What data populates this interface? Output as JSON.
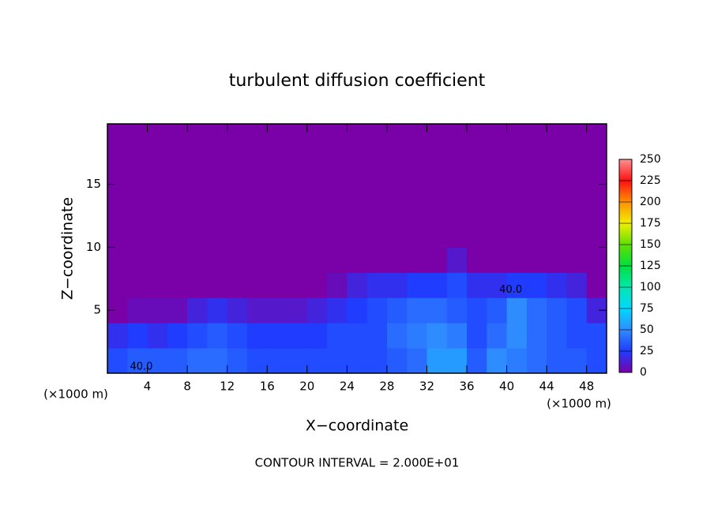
{
  "chart_data": {
    "type": "heatmap",
    "title": "turbulent diffusion coefficient",
    "xlabel": "X−coordinate",
    "ylabel": "Z−coordinate",
    "x_unit_left": "(×1000 m)",
    "x_unit_right": "(×1000 m)",
    "footnote": "CONTOUR INTERVAL = 2.000E+01",
    "xlim": [
      0,
      50
    ],
    "ylim": [
      0,
      19.8
    ],
    "xticks": [
      4,
      8,
      12,
      16,
      20,
      24,
      28,
      32,
      36,
      40,
      44,
      48
    ],
    "yticks": [
      5,
      10,
      15
    ],
    "x": [
      1,
      3,
      5,
      7,
      9,
      11,
      13,
      15,
      17,
      19,
      21,
      23,
      25,
      27,
      29,
      31,
      33,
      35,
      37,
      39,
      41,
      43,
      45,
      47,
      49
    ],
    "y": [
      1,
      3,
      5,
      7,
      9,
      11,
      13,
      15,
      17,
      19
    ],
    "z": [
      [
        30,
        35,
        35,
        35,
        40,
        40,
        35,
        30,
        30,
        30,
        30,
        30,
        30,
        30,
        35,
        40,
        55,
        55,
        35,
        50,
        45,
        40,
        35,
        35,
        30
      ],
      [
        20,
        25,
        20,
        25,
        30,
        35,
        30,
        25,
        25,
        25,
        25,
        30,
        30,
        30,
        40,
        45,
        50,
        45,
        30,
        40,
        50,
        40,
        35,
        30,
        30
      ],
      [
        0,
        5,
        5,
        5,
        15,
        20,
        15,
        10,
        10,
        10,
        15,
        20,
        25,
        30,
        35,
        40,
        40,
        35,
        30,
        35,
        50,
        40,
        35,
        30,
        15
      ],
      [
        0,
        0,
        0,
        0,
        0,
        0,
        0,
        0,
        0,
        0,
        0,
        5,
        15,
        20,
        20,
        25,
        25,
        30,
        20,
        20,
        25,
        25,
        20,
        15,
        0
      ],
      [
        0,
        0,
        0,
        0,
        0,
        0,
        0,
        0,
        0,
        0,
        0,
        0,
        0,
        0,
        0,
        0,
        0,
        10,
        0,
        0,
        0,
        0,
        0,
        0,
        0
      ],
      [
        0,
        0,
        0,
        0,
        0,
        0,
        0,
        0,
        0,
        0,
        0,
        0,
        0,
        0,
        0,
        0,
        0,
        0,
        0,
        0,
        0,
        0,
        0,
        0,
        0
      ],
      [
        0,
        0,
        0,
        0,
        0,
        0,
        0,
        0,
        0,
        0,
        0,
        0,
        0,
        0,
        0,
        0,
        0,
        0,
        0,
        0,
        0,
        0,
        0,
        0,
        0
      ],
      [
        0,
        0,
        0,
        0,
        0,
        0,
        0,
        0,
        0,
        0,
        0,
        0,
        0,
        0,
        0,
        0,
        0,
        0,
        0,
        0,
        0,
        0,
        0,
        0,
        0
      ],
      [
        0,
        0,
        0,
        0,
        0,
        0,
        0,
        0,
        0,
        0,
        0,
        0,
        0,
        0,
        0,
        0,
        0,
        0,
        0,
        0,
        0,
        0,
        0,
        0,
        0
      ],
      [
        0,
        0,
        0,
        0,
        0,
        0,
        0,
        0,
        0,
        0,
        0,
        0,
        0,
        0,
        0,
        0,
        0,
        0,
        0,
        0,
        0,
        0,
        0,
        0,
        0
      ]
    ],
    "colorscale": [
      [
        0,
        "#7a00a8"
      ],
      [
        25,
        "#1f3cff"
      ],
      [
        50,
        "#2f8cff"
      ],
      [
        75,
        "#00d8ff"
      ],
      [
        100,
        "#00e8b0"
      ],
      [
        125,
        "#00e040"
      ],
      [
        150,
        "#60e000"
      ],
      [
        175,
        "#f0f000"
      ],
      [
        200,
        "#ff9000"
      ],
      [
        225,
        "#ff1010"
      ],
      [
        250,
        "#ff9090"
      ]
    ],
    "clim": [
      0,
      250
    ],
    "cticks": [
      0,
      25,
      50,
      75,
      100,
      125,
      150,
      175,
      200,
      225,
      250
    ],
    "annotations": [
      {
        "text": "40.0",
        "x": 40.4,
        "y": 6.6
      },
      {
        "text": "40.0",
        "x": 3.4,
        "y": 0.5
      }
    ]
  }
}
